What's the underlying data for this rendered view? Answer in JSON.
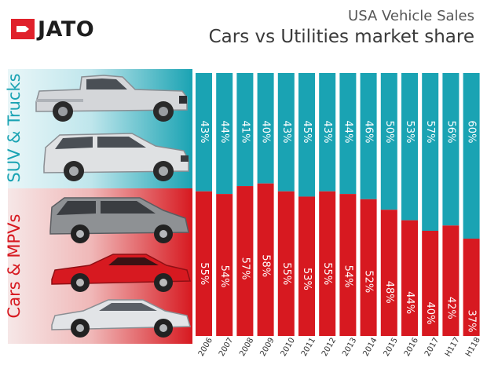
{
  "header": {
    "brand": "JATO",
    "title": "USA Vehicle Sales",
    "subtitle": "Cars vs Utilities market share"
  },
  "side_labels": {
    "suv": "SUV & Trucks",
    "cars": "Cars & MPVs"
  },
  "colors": {
    "suv": "#1aa3b3",
    "cars": "#d71920",
    "brand_red": "#e0212b"
  },
  "chart_data": {
    "type": "bar",
    "stacked": true,
    "title": "Cars vs Utilities market share",
    "xlabel": "",
    "ylabel": "",
    "ylim": [
      0,
      100
    ],
    "categories": [
      "2006",
      "2007",
      "2008",
      "2009",
      "2010",
      "2011",
      "2012",
      "2013",
      "2014",
      "2015",
      "2016",
      "2017",
      "H117",
      "H118"
    ],
    "series": [
      {
        "name": "Cars & MPVs",
        "values": [
          55,
          54,
          57,
          58,
          55,
          53,
          55,
          54,
          52,
          48,
          44,
          40,
          42,
          37
        ]
      },
      {
        "name": "SUV & Trucks",
        "values": [
          43,
          44,
          41,
          40,
          43,
          45,
          43,
          44,
          46,
          50,
          53,
          57,
          56,
          60
        ]
      }
    ],
    "value_suffix": "%"
  }
}
